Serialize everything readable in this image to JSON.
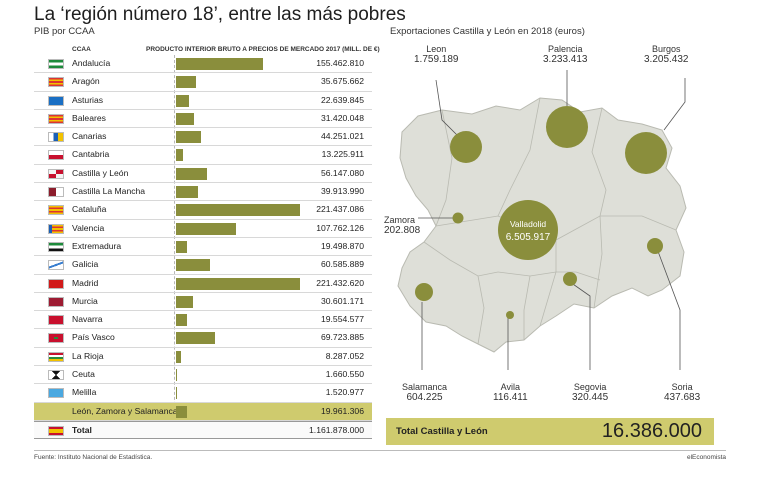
{
  "title": "La ‘región número 18’, entre las más pobres",
  "subtitle": "PIB por CCAA",
  "table_headers": {
    "ccaa": "CCAA",
    "pib": "PRODUCTO INTERIOR BRUTO A PRECIOS DE MERCADO 2017 (MILL. DE €)"
  },
  "map_title": "Exportaciones Castilla y León en 2018 (euros)",
  "total_box": {
    "label": "Total Castilla y León",
    "value": "16.386.000"
  },
  "footer": {
    "source": "Fuente: Instituto Nacional de Estadística.",
    "brand": "elEconomista"
  },
  "colors": {
    "bar": "#8a8e3c",
    "bubble": "#8a8e3c",
    "map": "#dedfd8",
    "highlight": "#cfcb6e"
  },
  "chart_data": [
    {
      "type": "bar",
      "title": "PIB por CCAA",
      "categories": [
        "Andalucía",
        "Aragón",
        "Asturias",
        "Baleares",
        "Canarias",
        "Cantabria",
        "Castilla y León",
        "Castilla La Mancha",
        "Cataluña",
        "Valencia",
        "Extremadura",
        "Galicia",
        "Madrid",
        "Murcia",
        "Navarra",
        "País Vasco",
        "La Rioja",
        "Ceuta",
        "Melilla",
        "León, Zamora y Salamanca"
      ],
      "values": [
        155462.81,
        35675.662,
        22639.845,
        31420.048,
        44251.021,
        13225.911,
        56147.08,
        39913.99,
        221437.086,
        107762.126,
        19498.87,
        60585.889,
        221432.62,
        30601.171,
        19554.577,
        69723.885,
        8287.052,
        1660.55,
        1520.977,
        19961.306
      ],
      "labels": [
        "155.462.810",
        "35.675.662",
        "22.639.845",
        "31.420.048",
        "44.251.021",
        "13.225.911",
        "56.147.080",
        "39.913.990",
        "221.437.086",
        "107.762.126",
        "19.498.870",
        "60.585.889",
        "221.432.620",
        "30.601.171",
        "19.554.577",
        "69.723.885",
        "8.287.052",
        "1.660.550",
        "1.520.977",
        "19.961.306"
      ],
      "flags": [
        "andalucia",
        "aragon",
        "asturias",
        "baleares",
        "canarias",
        "cantabria",
        "castilla-leon",
        "castilla-la-mancha",
        "cataluna",
        "valencia",
        "extremadura",
        "galicia",
        "madrid",
        "murcia",
        "navarra",
        "pais-vasco",
        "la-rioja",
        "ceuta",
        "melilla",
        "none"
      ],
      "highlight": "León, Zamora y Salamanca",
      "total": {
        "label": "Total",
        "value": "1.161.878.000"
      },
      "ylabel": "PRODUCTO INTERIOR BRUTO A PRECIOS DE MERCADO 2017 (MILL. DE €)"
    },
    {
      "type": "bubble-map",
      "title": "Exportaciones Castilla y León en 2018 (euros)",
      "points": [
        {
          "name": "Leon",
          "label": "1.759.189",
          "value": 1759189
        },
        {
          "name": "Palencia",
          "label": "3.233.413",
          "value": 3233413
        },
        {
          "name": "Burgos",
          "label": "3.205.432",
          "value": 3205432
        },
        {
          "name": "Zamora",
          "label": "202.808",
          "value": 202808
        },
        {
          "name": "Valladolid",
          "label": "6.505.917",
          "value": 6505917
        },
        {
          "name": "Salamanca",
          "label": "604.225",
          "value": 604225
        },
        {
          "name": "Avila",
          "label": "116.411",
          "value": 116411
        },
        {
          "name": "Segovia",
          "label": "320.445",
          "value": 320445
        },
        {
          "name": "Soria",
          "label": "437.683",
          "value": 437683
        }
      ]
    }
  ]
}
